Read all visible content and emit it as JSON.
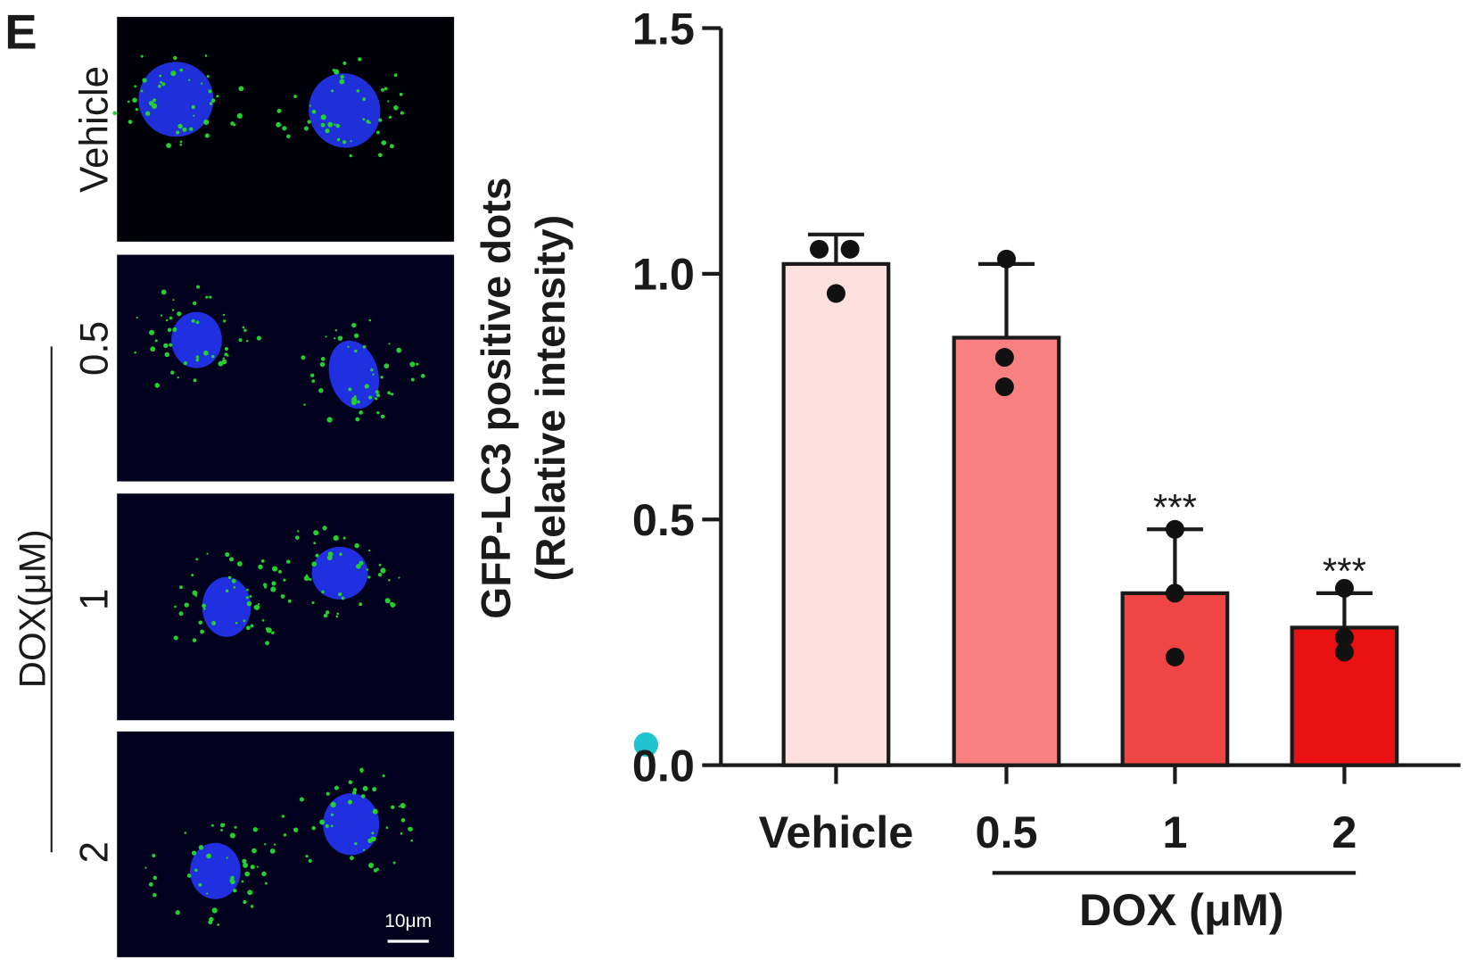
{
  "panel_label": "E",
  "micrographs": {
    "row_labels": [
      "Vehicle",
      "0.5",
      "1",
      "2"
    ],
    "group_label": "DOX(μM)",
    "scale_bar": "10μm"
  },
  "chart_data": {
    "type": "bar",
    "y_label": [
      "GFP-LC3 positive dots",
      "(Relative intensity)"
    ],
    "categories": [
      "Vehicle",
      "0.5",
      "1",
      "2"
    ],
    "group_label": "DOX (μM)",
    "series": [
      {
        "colors": [
          "#fde0de",
          "#f88080",
          "#f04545",
          "#e81010"
        ],
        "values": [
          1.02,
          0.87,
          0.35,
          0.28
        ],
        "errors": [
          0.06,
          0.15,
          0.13,
          0.07
        ],
        "points": [
          [
            1.05,
            1.05,
            0.96
          ],
          [
            1.03,
            0.83,
            0.77
          ],
          [
            0.48,
            0.35,
            0.22
          ],
          [
            0.36,
            0.26,
            0.23
          ]
        ],
        "significance": [
          null,
          null,
          "***",
          "***"
        ]
      }
    ],
    "ylim": [
      0,
      1.5
    ],
    "yticks": [
      {
        "value": 0,
        "label": "0.0"
      },
      0.5,
      {
        "value": 1,
        "label": "1.0"
      },
      1.5
    ]
  }
}
